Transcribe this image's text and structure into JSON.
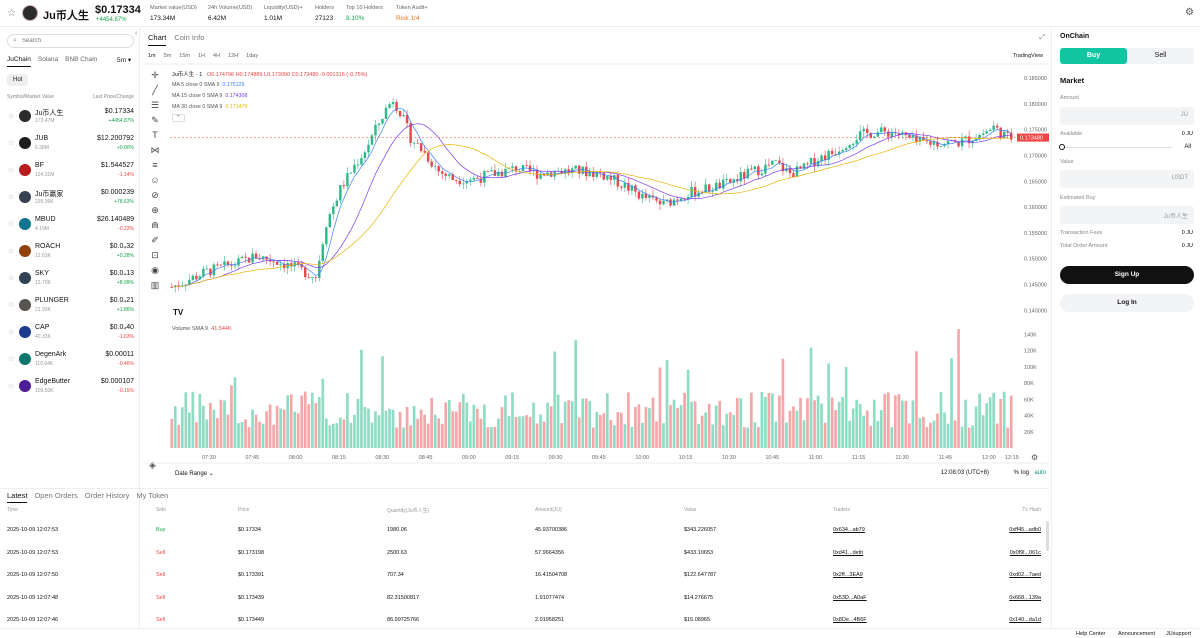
{
  "token": {
    "name": "Ju币人生",
    "price": "$0.17334",
    "change": "+4454.87%"
  },
  "stats": [
    {
      "label": "Market value(USD)",
      "value": "173.34M"
    },
    {
      "label": "24h Volume(USD)",
      "value": "6.42M"
    },
    {
      "label": "Liquidity(USD)+",
      "value": "1.01M"
    },
    {
      "label": "Holders",
      "value": "27123"
    },
    {
      "label": "Top 10 Holders",
      "value": "8.10%"
    },
    {
      "label": "Token Audit+",
      "value": "Risk 1/4"
    }
  ],
  "sidebar": {
    "search_placeholder": "Search",
    "chains": [
      "JuChain",
      "Solana",
      "BNB Chain"
    ],
    "interval": "5m ▾",
    "hot": "Hot",
    "head_left": "Symbol/Market Value",
    "head_right": "Last Price/Change",
    "tokens": [
      {
        "name": "Ju币人生",
        "sub": "173.47M",
        "price": "$0.17334",
        "change": "+4454.87%",
        "up": true,
        "color": "#2b2b2b"
      },
      {
        "name": "JUB",
        "sub": "6.38M",
        "price": "$12.200792",
        "change": "+0.00%",
        "up": true,
        "color": "#1d1d1f"
      },
      {
        "name": "BF",
        "sub": "124.31M",
        "price": "$1.544527",
        "change": "-1.14%",
        "up": false,
        "color": "#b91c1c"
      },
      {
        "name": "Ju币赢家",
        "sub": "239.36K",
        "price": "$0.000239",
        "change": "+78.63%",
        "up": true,
        "color": "#374151"
      },
      {
        "name": "MBUD",
        "sub": "4.19M",
        "price": "$26.140489",
        "change": "-0.22%",
        "up": false,
        "color": "#0e7490"
      },
      {
        "name": "ROACH",
        "sub": "12.63K",
        "price": "$0.0₄32",
        "change": "+0.28%",
        "up": true,
        "color": "#92400e"
      },
      {
        "name": "SKY",
        "sub": "13.70K",
        "price": "$0.0₄13",
        "change": "+8.99%",
        "up": true,
        "color": "#334155"
      },
      {
        "name": "PLUNGER",
        "sub": "21.93K",
        "price": "$0.0₄21",
        "change": "+1.86%",
        "up": true,
        "color": "#57534e"
      },
      {
        "name": "CAP",
        "sub": "40.33K",
        "price": "$0.0₄40",
        "change": "-1.63%",
        "up": false,
        "color": "#1e3a8a"
      },
      {
        "name": "DegenArk",
        "sub": "110.64K",
        "price": "$0.00011",
        "change": "-0.46%",
        "up": false,
        "color": "#0f766e"
      },
      {
        "name": "EdgeButter",
        "sub": "109.50K",
        "price": "$0.000107",
        "change": "-0.15%",
        "up": false,
        "color": "#4c1d95"
      }
    ]
  },
  "chart": {
    "tabs": [
      "Chart",
      "Coin Info"
    ],
    "intervals": [
      "1m",
      "5m",
      "15m",
      "1H",
      "4H",
      "12H",
      "1day"
    ],
    "provider": "TradingView",
    "symbol": "Ju币人生 · 1",
    "ohlc": "O0.174796 H0.174889 L0.173090 C0.173480 -0.001316 (-0.75%)",
    "ma5": "MA 5 close 0 SMA 9",
    "ma5v": "0.175129",
    "ma15": "MA 15 close 0 SMA 9",
    "ma15v": "0.174308",
    "ma30": "MA 30 close 0 SMA 9",
    "ma30v": "0.171479",
    "volume_label": "Volume SMA 9",
    "volume_value": "41.544K",
    "date_range": "Date Range ⌄",
    "clock": "12:08:03 (UTC+8)",
    "pct": "%",
    "log": "log",
    "auto": "auto",
    "last_label": "0.173480",
    "corner_time": "12:15"
  },
  "chart_data": {
    "type": "candlestick",
    "price_axis": [
      0.185,
      0.18,
      0.175,
      0.17,
      0.165,
      0.16,
      0.155,
      0.15,
      0.145,
      0.14
    ],
    "price_labels": [
      "0.185000",
      "0.180000",
      "0.175000",
      "0.170000",
      "0.165000",
      "0.160000",
      "0.155000",
      "0.150000",
      "0.145000",
      "0.140000"
    ],
    "volume_axis": [
      140,
      120,
      100,
      80,
      60,
      40,
      20
    ],
    "volume_labels": [
      "140K",
      "120K",
      "100K",
      "80K",
      "60K",
      "40K",
      "20K"
    ],
    "time_labels": [
      "07:30",
      "07:45",
      "08:00",
      "08:15",
      "08:30",
      "08:45",
      "09:00",
      "09:15",
      "09:30",
      "09:45",
      "10:00",
      "10:15",
      "10:30",
      "10:45",
      "11:00",
      "11:15",
      "11:30",
      "11:45",
      "12:00"
    ],
    "close_path": [
      [
        0,
        0.1445
      ],
      [
        10,
        0.1475
      ],
      [
        18,
        0.149
      ],
      [
        24,
        0.1505
      ],
      [
        30,
        0.1495
      ],
      [
        36,
        0.148
      ],
      [
        41,
        0.1465
      ],
      [
        44,
        0.157
      ],
      [
        48,
        0.1635
      ],
      [
        52,
        0.168
      ],
      [
        55,
        0.171
      ],
      [
        58,
        0.175
      ],
      [
        61,
        0.179
      ],
      [
        63,
        0.181
      ],
      [
        65,
        0.1785
      ],
      [
        68,
        0.1735
      ],
      [
        72,
        0.1705
      ],
      [
        76,
        0.167
      ],
      [
        80,
        0.1655
      ],
      [
        86,
        0.1655
      ],
      [
        92,
        0.1665
      ],
      [
        98,
        0.1675
      ],
      [
        104,
        0.1665
      ],
      [
        110,
        0.167
      ],
      [
        116,
        0.167
      ],
      [
        122,
        0.1665
      ],
      [
        128,
        0.1645
      ],
      [
        134,
        0.162
      ],
      [
        140,
        0.1605
      ],
      [
        146,
        0.1625
      ],
      [
        152,
        0.1635
      ],
      [
        158,
        0.1645
      ],
      [
        164,
        0.1665
      ],
      [
        168,
        0.1675
      ],
      [
        172,
        0.1685
      ],
      [
        176,
        0.1665
      ],
      [
        180,
        0.1675
      ],
      [
        184,
        0.1695
      ],
      [
        188,
        0.1705
      ],
      [
        192,
        0.1725
      ],
      [
        196,
        0.174
      ],
      [
        200,
        0.1745
      ],
      [
        206,
        0.1745
      ],
      [
        212,
        0.1725
      ],
      [
        218,
        0.1725
      ],
      [
        224,
        0.1725
      ],
      [
        230,
        0.174
      ],
      [
        234,
        0.1755
      ],
      [
        238,
        0.1735
      ]
    ],
    "ma5": "0.175129",
    "ma15": "0.174308",
    "ma30": "0.171479"
  },
  "right": {
    "title": "OnChain",
    "buy": "Buy",
    "sell": "Sell",
    "market": "Market",
    "amount_label": "Amount",
    "amount_unit": "JU",
    "available_label": "Available",
    "available_value": "0 JU",
    "all": "All",
    "value_label": "Value",
    "value_unit": "USDT",
    "est_label": "Estimated Buy",
    "est_unit": "Ju币人生",
    "fee_label": "Transaction Fees",
    "fee_value": "0 JU",
    "total_label": "Total Order Amount",
    "total_value": "0 JU",
    "signup": "Sign Up",
    "login": "Log In"
  },
  "trades": {
    "tabs": [
      "Latest",
      "Open Orders",
      "Order History",
      "My Token"
    ],
    "headers": [
      "Time",
      "Side",
      "Price",
      "Quantity(Ju币人生)",
      "Amount(JU)",
      "Value",
      "Traders",
      "Tx Hash"
    ],
    "rows": [
      [
        "2025-10-09 12:07:53",
        "Buy",
        "$0.17334",
        "1980.06",
        "45.93700386",
        "$343.226057",
        "0x634...ab79",
        "0xff45...adb0"
      ],
      [
        "2025-10-09 12:07:53",
        "Sell",
        "$0.173198",
        "2500.63",
        "57.9664356",
        "$433.10653",
        "0xd41...deth",
        "0x0f9l...061c"
      ],
      [
        "2025-10-09 12:07:50",
        "Sell",
        "$0.173391",
        "707.34",
        "16.41504708",
        "$122.647787",
        "0x2ff...3EA9",
        "0xd02...7aed"
      ],
      [
        "2025-10-09 12:07:48",
        "Sell",
        "$0.173439",
        "82.31500817",
        "1.91077474",
        "$14.276675",
        "0x53D...A0aF",
        "0x668...139a"
      ],
      [
        "2025-10-09 12:07:46",
        "Sell",
        "$0.173449",
        "86.99725766",
        "2.01958251",
        "$15.08965",
        "0x8De...4B6F",
        "0x140...da1d"
      ]
    ]
  },
  "footer": {
    "help": "Help Center",
    "ann": "Announcement",
    "support": "JUsupport"
  }
}
